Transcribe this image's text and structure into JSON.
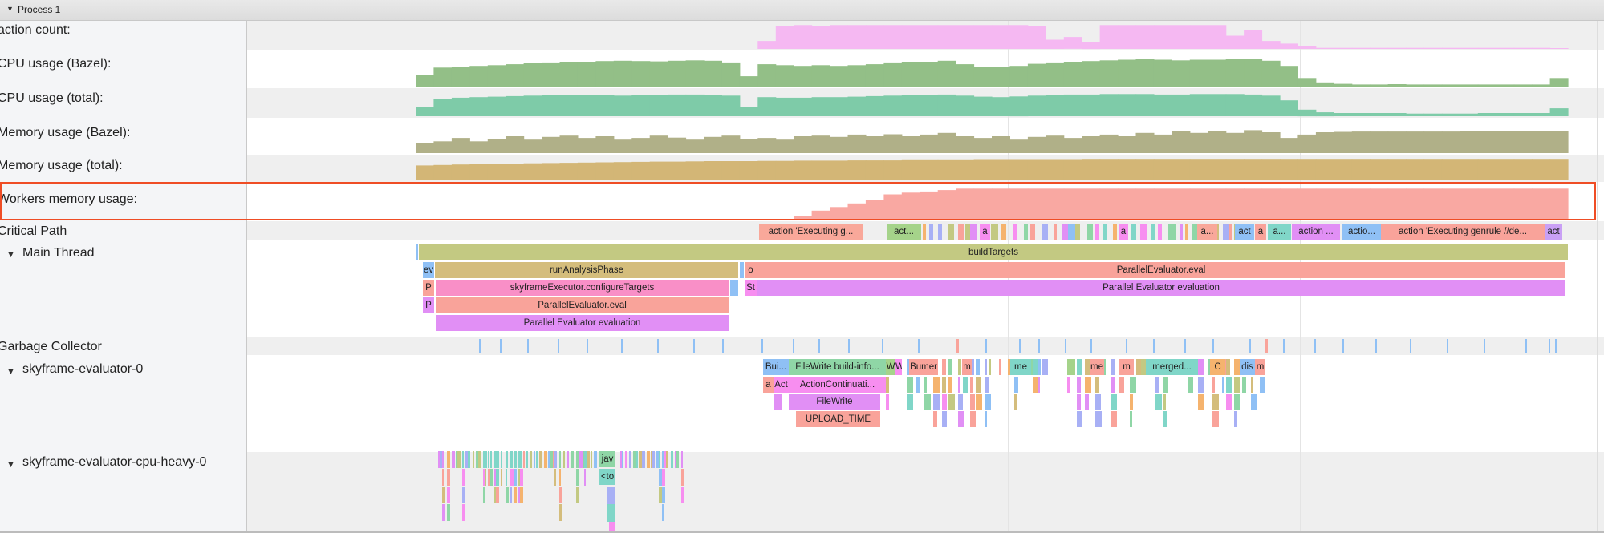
{
  "header": {
    "title": "Process 1",
    "expand_icon": "triangle-down-icon"
  },
  "counters": [
    {
      "label": "action count:",
      "color": "#f5b8f2",
      "values": [
        0,
        0,
        0,
        0,
        0,
        0,
        0,
        0,
        0,
        0,
        0,
        0,
        0,
        0,
        0,
        0,
        0,
        0,
        0,
        0.3,
        0.85,
        0.9,
        0.88,
        0.9,
        0.9,
        0.9,
        0.9,
        0.9,
        0.9,
        0.9,
        0.9,
        0.9,
        0.9,
        0.9,
        0.85,
        0.35,
        0.45,
        0.25,
        0.9,
        0.9,
        0.9,
        0.9,
        0.9,
        0.9,
        0.9,
        0.5,
        0.7,
        0.3,
        0.2,
        0.1,
        0.04,
        0.04,
        0.04,
        0.04,
        0.04,
        0.04,
        0.04,
        0.04,
        0.04,
        0.04,
        0.04,
        0.04,
        0.04,
        0.03
      ]
    },
    {
      "label": "CPU usage (Bazel):",
      "color": "#93bf87",
      "values": [
        0.35,
        0.55,
        0.58,
        0.6,
        0.62,
        0.65,
        0.68,
        0.7,
        0.72,
        0.72,
        0.74,
        0.75,
        0.74,
        0.73,
        0.75,
        0.76,
        0.75,
        0.7,
        0.3,
        0.65,
        0.62,
        0.6,
        0.62,
        0.6,
        0.62,
        0.65,
        0.7,
        0.72,
        0.72,
        0.75,
        0.65,
        0.58,
        0.56,
        0.6,
        0.66,
        0.7,
        0.72,
        0.74,
        0.76,
        0.78,
        0.8,
        0.78,
        0.76,
        0.78,
        0.78,
        0.8,
        0.8,
        0.75,
        0.6,
        0.25,
        0.12,
        0.08,
        0.06,
        0.06,
        0.07,
        0.06,
        0.06,
        0.06,
        0.06,
        0.06,
        0.06,
        0.06,
        0.06,
        0.25
      ]
    },
    {
      "label": "CPU usage (total):",
      "color": "#7ecba8",
      "values": [
        0.35,
        0.65,
        0.7,
        0.72,
        0.74,
        0.76,
        0.78,
        0.8,
        0.8,
        0.8,
        0.8,
        0.78,
        0.8,
        0.8,
        0.82,
        0.82,
        0.8,
        0.78,
        0.35,
        0.72,
        0.7,
        0.7,
        0.72,
        0.72,
        0.74,
        0.76,
        0.78,
        0.8,
        0.8,
        0.82,
        0.78,
        0.74,
        0.72,
        0.75,
        0.78,
        0.8,
        0.82,
        0.82,
        0.84,
        0.84,
        0.84,
        0.82,
        0.82,
        0.84,
        0.84,
        0.84,
        0.82,
        0.78,
        0.6,
        0.25,
        0.15,
        0.12,
        0.12,
        0.12,
        0.12,
        0.1,
        0.1,
        0.1,
        0.1,
        0.12,
        0.12,
        0.12,
        0.12,
        0.3
      ]
    },
    {
      "label": "Memory usage (Bazel):",
      "color": "#b0b088",
      "values": [
        0.3,
        0.35,
        0.45,
        0.35,
        0.42,
        0.5,
        0.4,
        0.48,
        0.52,
        0.45,
        0.5,
        0.4,
        0.45,
        0.52,
        0.46,
        0.4,
        0.48,
        0.52,
        0.42,
        0.45,
        0.4,
        0.5,
        0.52,
        0.48,
        0.55,
        0.5,
        0.56,
        0.5,
        0.55,
        0.6,
        0.5,
        0.45,
        0.5,
        0.4,
        0.48,
        0.52,
        0.45,
        0.5,
        0.55,
        0.5,
        0.6,
        0.55,
        0.65,
        0.6,
        0.65,
        0.6,
        0.68,
        0.62,
        0.45,
        0.55,
        0.62,
        0.63,
        0.64,
        0.64,
        0.64,
        0.64,
        0.64,
        0.64,
        0.65,
        0.65,
        0.65,
        0.65,
        0.65,
        0.65
      ]
    },
    {
      "label": "Memory usage (total):",
      "color": "#d3b676",
      "values": [
        0.62,
        0.64,
        0.66,
        0.68,
        0.69,
        0.7,
        0.71,
        0.72,
        0.73,
        0.74,
        0.75,
        0.76,
        0.77,
        0.78,
        0.78,
        0.79,
        0.8,
        0.8,
        0.8,
        0.81,
        0.81,
        0.82,
        0.82,
        0.82,
        0.83,
        0.83,
        0.83,
        0.84,
        0.84,
        0.84,
        0.84,
        0.85,
        0.85,
        0.85,
        0.85,
        0.85,
        0.85,
        0.86,
        0.86,
        0.86,
        0.86,
        0.86,
        0.86,
        0.86,
        0.86,
        0.86,
        0.86,
        0.86,
        0.86,
        0.86,
        0.86,
        0.86,
        0.86,
        0.86,
        0.86,
        0.86,
        0.86,
        0.86,
        0.86,
        0.86,
        0.86,
        0.86,
        0.86,
        0.86
      ]
    },
    {
      "label": "Workers memory usage:",
      "color": "#f9a8a2",
      "values": [
        0,
        0,
        0,
        0,
        0,
        0,
        0,
        0,
        0,
        0,
        0,
        0,
        0,
        0,
        0,
        0,
        0,
        0,
        0,
        0,
        0,
        0.1,
        0.25,
        0.35,
        0.45,
        0.55,
        0.7,
        0.75,
        0.78,
        0.82,
        0.86,
        0.86,
        0.86,
        0.86,
        0.86,
        0.86,
        0.86,
        0.86,
        0.86,
        0.86,
        0.86,
        0.86,
        0.86,
        0.86,
        0.86,
        0.86,
        0.86,
        0.86,
        0.86,
        0.86,
        0.86,
        0.86,
        0.86,
        0.86,
        0.86,
        0.86,
        0.86,
        0.86,
        0.86,
        0.86,
        0.86,
        0.86,
        0.86,
        0.86
      ]
    }
  ],
  "critical_path": {
    "label": "Critical Path",
    "slices": [
      {
        "label": "action 'Executing g...",
        "color": "#f9a89a"
      },
      {
        "label": "act...",
        "color": "#a5d38a"
      },
      {
        "label": "a",
        "color": "#f78ef0"
      },
      {
        "label": "a",
        "color": "#f78ef0"
      },
      {
        "label": "a...",
        "color": "#f9a89a"
      },
      {
        "label": "act",
        "color": "#8fc0f5"
      },
      {
        "label": "a",
        "color": "#f9a39a"
      },
      {
        "label": "a...",
        "color": "#80d6c8"
      },
      {
        "label": "action ...",
        "color": "#e18ff5"
      },
      {
        "label": "actio...",
        "color": "#8fc0f5"
      },
      {
        "label": "action 'Executing genrule //de...",
        "color": "#f9a39a"
      },
      {
        "label": "act",
        "color": "#c9a0f5"
      }
    ]
  },
  "main_thread": {
    "label": "Main Thread",
    "slices": [
      {
        "label": "buildTargets",
        "color": "#c3c982"
      },
      {
        "label": "ev",
        "color": "#8fc0f5"
      },
      {
        "label": "runAnalysisPhase",
        "color": "#d4bd7c"
      },
      {
        "label": "o",
        "color": "#f9a39a"
      },
      {
        "label": "ParallelEvaluator.eval",
        "color": "#f9a39a"
      },
      {
        "label": "P",
        "color": "#f9a39a"
      },
      {
        "label": "skyframeExecutor.configureTargets",
        "color": "#f98fc7"
      },
      {
        "label": "St",
        "color": "#f78ef0"
      },
      {
        "label": "Parallel Evaluator evaluation",
        "color": "#e18ff5"
      },
      {
        "label": "P",
        "color": "#e18ff5"
      },
      {
        "label": "ParallelEvaluator.eval",
        "color": "#f9a39a"
      },
      {
        "label": "Parallel Evaluator evaluation",
        "color": "#e18ff5"
      }
    ]
  },
  "garbage_collector": {
    "label": "Garbage Collector",
    "tick_color": "#8fc0f5",
    "major_color": "#f9a39a"
  },
  "evaluator_0": {
    "label": "skyframe-evaluator-0",
    "slices": [
      {
        "label": "Bui...",
        "color": "#8fc0f5"
      },
      {
        "label": "FileWrite build-info...",
        "color": "#8fd6a6"
      },
      {
        "label": "W",
        "color": "#a5d38a"
      },
      {
        "label": "W",
        "color": "#f78ef0"
      },
      {
        "label": "Bumer",
        "color": "#f9a39a"
      },
      {
        "label": "m",
        "color": "#f9a39a"
      },
      {
        "label": "me",
        "color": "#80d6c8"
      },
      {
        "label": "me",
        "color": "#f9a39a"
      },
      {
        "label": "m",
        "color": "#f9a39a"
      },
      {
        "label": "merged...",
        "color": "#80d6c8"
      },
      {
        "label": "C",
        "color": "#f5b36e"
      },
      {
        "label": "dis",
        "color": "#8fc0f5"
      },
      {
        "label": "m",
        "color": "#f9a39a"
      },
      {
        "label": "a",
        "color": "#f9a39a"
      },
      {
        "label": "Act",
        "color": "#f78ef0"
      },
      {
        "label": "ActionContinuati...",
        "color": "#f78ef0"
      },
      {
        "label": "FileWrite",
        "color": "#e18ff5"
      },
      {
        "label": "UPLOAD_TIME",
        "color": "#f9a39a"
      }
    ]
  },
  "cpu_heavy": {
    "label": "skyframe-evaluator-cpu-heavy-0",
    "slices": [
      {
        "label": "jav",
        "color": "#8fd6a6"
      },
      {
        "label": "<to",
        "color": "#80d6c8"
      }
    ]
  }
}
